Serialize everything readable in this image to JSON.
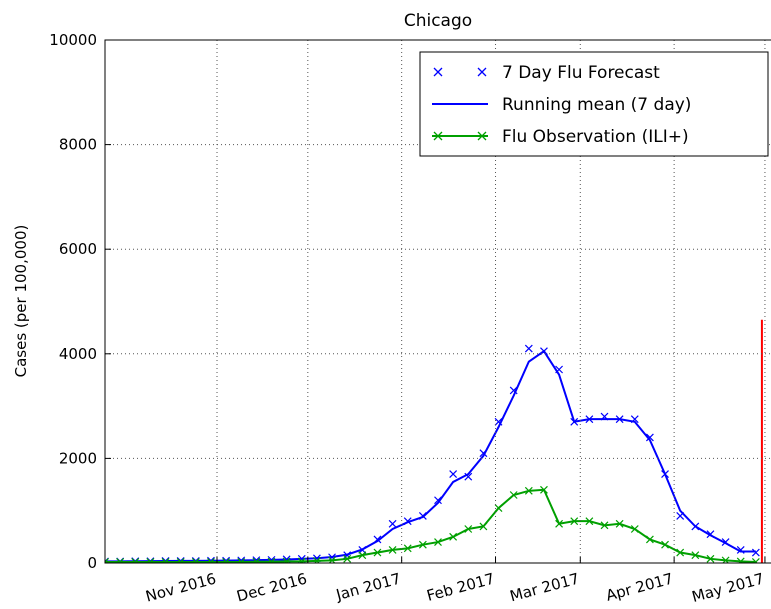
{
  "chart_data": {
    "type": "line",
    "title": "Chicago",
    "y_label": "Cases (per 100,000)",
    "x": [
      "2016-09-25",
      "2016-09-30",
      "2016-10-05",
      "2016-10-10",
      "2016-10-15",
      "2016-10-20",
      "2016-10-25",
      "2016-10-30",
      "2016-11-04",
      "2016-11-09",
      "2016-11-14",
      "2016-11-19",
      "2016-11-24",
      "2016-11-29",
      "2016-12-04",
      "2016-12-09",
      "2016-12-14",
      "2016-12-19",
      "2016-12-24",
      "2016-12-29",
      "2017-01-03",
      "2017-01-08",
      "2017-01-13",
      "2017-01-18",
      "2017-01-23",
      "2017-01-28",
      "2017-02-02",
      "2017-02-07",
      "2017-02-12",
      "2017-02-17",
      "2017-02-22",
      "2017-02-27",
      "2017-03-04",
      "2017-03-09",
      "2017-03-14",
      "2017-03-19",
      "2017-03-24",
      "2017-03-29",
      "2017-04-03",
      "2017-04-08",
      "2017-04-13",
      "2017-04-18",
      "2017-04-23",
      "2017-04-28"
    ],
    "series": [
      {
        "name": "7 Day Flu Forecast",
        "color": "#0000ff",
        "style": "markers",
        "values": [
          30,
          30,
          35,
          35,
          40,
          40,
          40,
          45,
          45,
          50,
          55,
          60,
          70,
          80,
          90,
          110,
          150,
          250,
          450,
          750,
          800,
          900,
          1200,
          1700,
          1650,
          2100,
          2700,
          3300,
          4100,
          4050,
          3700,
          2700,
          2750,
          2800,
          2750,
          2750,
          2400,
          1700,
          900,
          700,
          550,
          400,
          250,
          200
        ]
      },
      {
        "name": "Running mean (7 day)",
        "color": "#0000ff",
        "style": "line",
        "values": [
          30,
          32,
          34,
          36,
          38,
          40,
          41,
          43,
          45,
          49,
          54,
          60,
          68,
          78,
          90,
          115,
          160,
          260,
          420,
          650,
          780,
          880,
          1150,
          1550,
          1700,
          2050,
          2600,
          3200,
          3850,
          4050,
          3600,
          2700,
          2750,
          2750,
          2750,
          2700,
          2350,
          1700,
          1000,
          700,
          530,
          380,
          220,
          220
        ]
      },
      {
        "name": "Flu Observation (ILI+)",
        "color": "#00a000",
        "style": "line-markers",
        "values": [
          20,
          20,
          20,
          20,
          20,
          20,
          20,
          20,
          20,
          20,
          25,
          25,
          30,
          30,
          40,
          50,
          80,
          150,
          200,
          250,
          280,
          350,
          400,
          500,
          650,
          700,
          1050,
          1300,
          1380,
          1400,
          750,
          800,
          800,
          720,
          750,
          650,
          450,
          350,
          200,
          150,
          80,
          50,
          30,
          20
        ]
      }
    ],
    "vline": {
      "x": "2017-04-30",
      "y": [
        0,
        4650
      ],
      "color": "#ff0000"
    },
    "xlim": [
      "2016-09-25",
      "2017-05-03"
    ],
    "xticks": [
      {
        "value": "2016-11-01",
        "label": "Nov 2016"
      },
      {
        "value": "2016-12-01",
        "label": "Dec 2016"
      },
      {
        "value": "2017-01-01",
        "label": "Jan 2017"
      },
      {
        "value": "2017-02-01",
        "label": "Feb 2017"
      },
      {
        "value": "2017-03-01",
        "label": "Mar 2017"
      },
      {
        "value": "2017-04-01",
        "label": "Apr 2017"
      },
      {
        "value": "2017-05-01",
        "label": "May 2017"
      }
    ],
    "ylim": [
      0,
      10000
    ],
    "yticks": [
      0,
      2000,
      4000,
      6000,
      8000,
      10000
    ],
    "grid": true,
    "legend": "upper right"
  }
}
